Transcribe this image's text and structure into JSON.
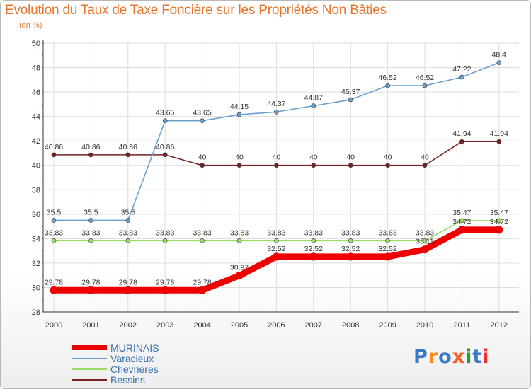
{
  "header": {
    "title": "Evolution du Taux de Taxe Foncière sur les Propriétés Non Bâties",
    "unit": "(en %)"
  },
  "chart_data": {
    "type": "line",
    "title": "Evolution du Taux de Taxe Foncière sur les Propriétés Non Bâties",
    "ylabel": "(en %)",
    "xlabel": "",
    "x": [
      "2000",
      "2001",
      "2002",
      "2003",
      "2004",
      "2005",
      "2006",
      "2007",
      "2008",
      "2009",
      "2010",
      "2011",
      "2012"
    ],
    "ylim": [
      28,
      50
    ],
    "yticks": [
      28,
      30,
      32,
      34,
      36,
      38,
      40,
      42,
      44,
      46,
      48,
      50
    ],
    "grid": true,
    "legend_position": "bottom-left",
    "series": [
      {
        "name": "MURINAIS",
        "color": "#ee0000",
        "values": [
          29.78,
          29.78,
          29.78,
          29.78,
          29.78,
          30.97,
          32.52,
          32.52,
          32.52,
          32.52,
          33.11,
          34.72,
          34.72
        ]
      },
      {
        "name": "Varacieux",
        "color": "#6aa0d0",
        "values": [
          35.5,
          35.5,
          35.5,
          43.65,
          43.65,
          44.15,
          44.37,
          44.87,
          45.37,
          46.52,
          46.52,
          47.22,
          48.4
        ]
      },
      {
        "name": "Chevrières",
        "color": "#99dd66",
        "values": [
          33.83,
          33.83,
          33.83,
          33.83,
          33.83,
          33.83,
          33.83,
          33.83,
          33.83,
          33.83,
          33.83,
          35.47,
          35.47
        ]
      },
      {
        "name": "Bessins",
        "color": "#772222",
        "values": [
          40.86,
          40.86,
          40.86,
          40.86,
          40,
          40,
          40,
          40,
          40,
          40,
          40,
          41.94,
          41.94
        ]
      }
    ]
  },
  "legend": [
    {
      "label": "MURINAIS",
      "color": "#ee0000"
    },
    {
      "label": "Varacieux",
      "color": "#6aa0d0"
    },
    {
      "label": "Chevrières",
      "color": "#99dd66"
    },
    {
      "label": "Bessins",
      "color": "#772222"
    }
  ],
  "logo": {
    "text": "Proxiti",
    "colors": [
      "#3a79c6",
      "#ff8a1a",
      "#3a79c6",
      "#ff5a1a",
      "#2a9a3a",
      "#3a79c6",
      "#ee3333"
    ]
  }
}
